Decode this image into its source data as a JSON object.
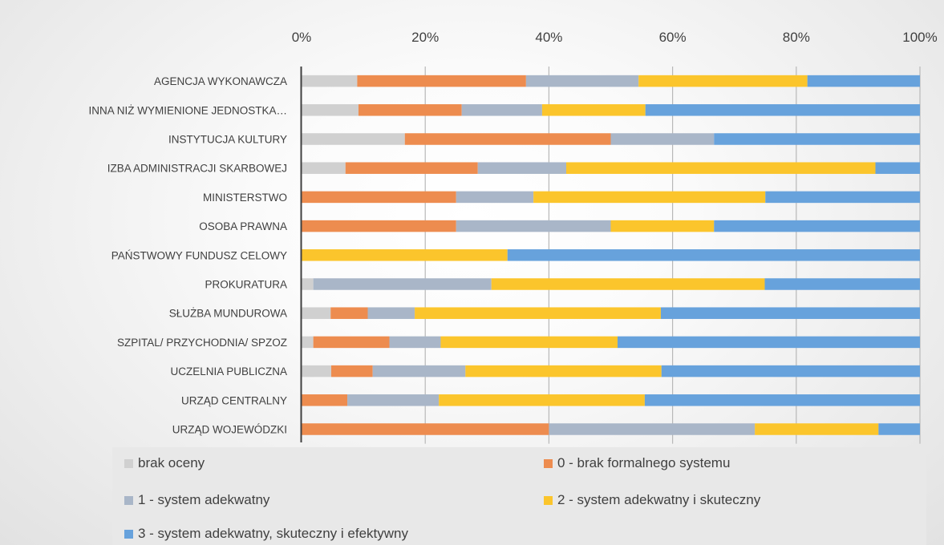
{
  "chart_data": {
    "type": "bar",
    "orientation": "horizontal",
    "stacked": "percent",
    "title": "",
    "xlabel": "",
    "ylabel": "",
    "xlim": [
      0,
      100
    ],
    "x_ticks": [
      "0%",
      "20%",
      "40%",
      "60%",
      "80%",
      "100%"
    ],
    "x_axis_position": "top",
    "grid": true,
    "legend_position": "bottom",
    "categories": [
      "AGENCJA WYKONAWCZA",
      "INNA NIŻ WYMIENIONE JEDNOSTKA…",
      "INSTYTUCJA KULTURY",
      "IZBA ADMINISTRACJI SKARBOWEJ",
      "MINISTERSTWO",
      "OSOBA PRAWNA",
      "PAŃSTWOWY FUNDUSZ CELOWY",
      "PROKURATURA",
      "SŁUŻBA MUNDUROWA",
      "SZPITAL/ PRZYCHODNIA/ SPZOZ",
      "UCZELNIA PUBLICZNA",
      "URZĄD CENTRALNY",
      "URZĄD WOJEWÓDZKI"
    ],
    "series": [
      {
        "name": "brak oceny",
        "color": "#d0d0d0",
        "values": [
          9.0,
          9.2,
          16.7,
          7.1,
          0,
          0,
          0,
          1.9,
          4.7,
          1.9,
          4.8,
          0,
          0
        ]
      },
      {
        "name": "0 - brak formalnego systemu",
        "color": "#ed8c4f",
        "values": [
          27.3,
          16.7,
          33.3,
          21.4,
          25.0,
          25.0,
          0,
          0,
          6.0,
          12.3,
          6.7,
          7.4,
          40.0
        ]
      },
      {
        "name": "1 - system adekwatny",
        "color": "#a9b6c8",
        "values": [
          18.2,
          13.0,
          16.7,
          14.3,
          12.5,
          25.0,
          0,
          28.8,
          7.6,
          8.3,
          15.0,
          14.8,
          33.3
        ]
      },
      {
        "name": "2 - system adekwatny i skuteczny",
        "color": "#fbc52c",
        "values": [
          27.3,
          16.7,
          0,
          50.0,
          37.5,
          16.7,
          33.3,
          44.2,
          39.8,
          28.6,
          31.7,
          33.3,
          20.0
        ]
      },
      {
        "name": "3 - system adekwatny, skuteczny i efektywny",
        "color": "#67a2dc",
        "values": [
          18.2,
          44.4,
          33.3,
          7.2,
          25.0,
          33.3,
          66.7,
          25.1,
          41.9,
          48.9,
          41.8,
          44.5,
          6.7
        ]
      }
    ]
  }
}
